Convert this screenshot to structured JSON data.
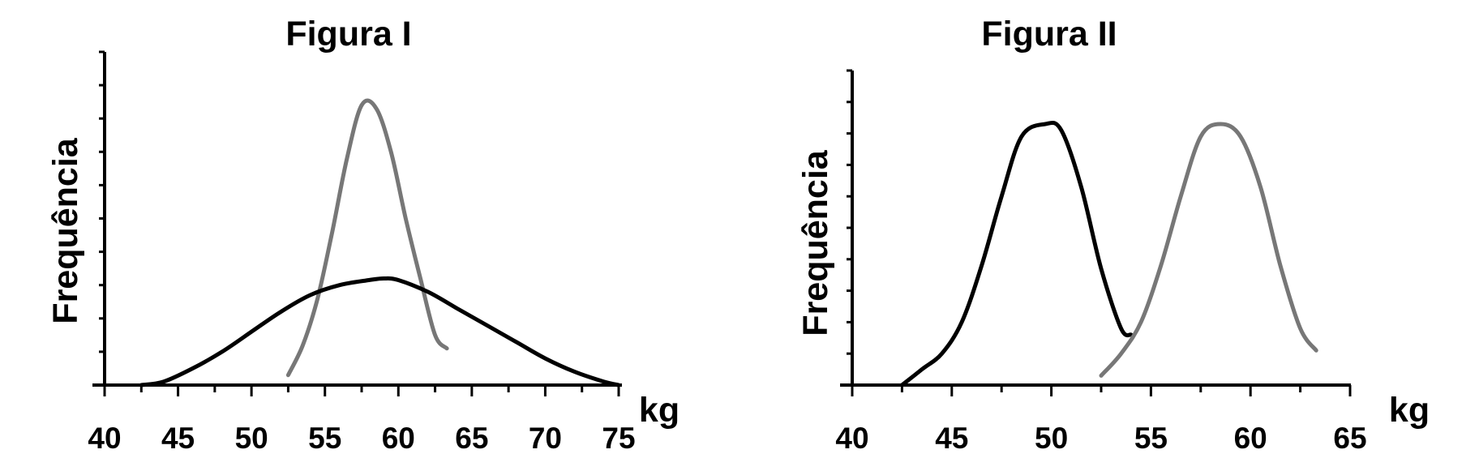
{
  "chart_data": [
    {
      "type": "line",
      "title": "Figura I",
      "xlabel": "kg",
      "ylabel": "Frequência",
      "xlim": [
        40,
        75
      ],
      "ylim": [
        0,
        10
      ],
      "x_ticks": [
        40,
        45,
        50,
        55,
        60,
        65,
        70,
        75
      ],
      "x_minor_step": 2.5,
      "y_tick_step": 1,
      "grid": false,
      "series": [
        {
          "color": "#777777",
          "points": [
            [
              52.5,
              0.3
            ],
            [
              53.5,
              1.2
            ],
            [
              54.5,
              2.6
            ],
            [
              55.5,
              4.6
            ],
            [
              56.5,
              6.8
            ],
            [
              57.5,
              8.4
            ],
            [
              58.5,
              8.3
            ],
            [
              59.5,
              7.0
            ],
            [
              60.5,
              5.0
            ],
            [
              61.5,
              3.2
            ],
            [
              62.5,
              1.5
            ],
            [
              63.3,
              1.1
            ]
          ]
        },
        {
          "color": "#000000",
          "points": [
            [
              42.5,
              0.0
            ],
            [
              44.0,
              0.1
            ],
            [
              46.0,
              0.5
            ],
            [
              48.0,
              1.0
            ],
            [
              50.0,
              1.6
            ],
            [
              52.0,
              2.2
            ],
            [
              54.0,
              2.7
            ],
            [
              56.0,
              3.0
            ],
            [
              58.0,
              3.15
            ],
            [
              59.0,
              3.2
            ],
            [
              60.0,
              3.15
            ],
            [
              62.0,
              2.8
            ],
            [
              64.0,
              2.3
            ],
            [
              66.0,
              1.8
            ],
            [
              68.0,
              1.3
            ],
            [
              70.0,
              0.8
            ],
            [
              72.0,
              0.4
            ],
            [
              74.0,
              0.1
            ],
            [
              75.0,
              0.0
            ]
          ]
        }
      ]
    },
    {
      "type": "line",
      "title": "Figura II",
      "xlabel": "kg",
      "ylabel": "Frequência",
      "xlim": [
        40,
        65
      ],
      "ylim": [
        0,
        10
      ],
      "x_ticks": [
        40,
        45,
        50,
        55,
        60,
        65
      ],
      "x_minor_step": 2.5,
      "y_tick_step": 1,
      "grid": false,
      "series": [
        {
          "color": "#000000",
          "points": [
            [
              42.5,
              0.0
            ],
            [
              43.5,
              0.5
            ],
            [
              44.5,
              1.0
            ],
            [
              45.5,
              2.0
            ],
            [
              46.5,
              3.8
            ],
            [
              47.5,
              6.0
            ],
            [
              48.5,
              7.9
            ],
            [
              49.7,
              8.3
            ],
            [
              50.5,
              8.1
            ],
            [
              51.5,
              6.3
            ],
            [
              52.5,
              3.7
            ],
            [
              53.5,
              1.8
            ],
            [
              54.0,
              1.6
            ]
          ]
        },
        {
          "color": "#777777",
          "points": [
            [
              52.5,
              0.3
            ],
            [
              53.5,
              1.0
            ],
            [
              54.5,
              2.0
            ],
            [
              55.5,
              3.8
            ],
            [
              56.5,
              6.0
            ],
            [
              57.5,
              7.9
            ],
            [
              58.5,
              8.3
            ],
            [
              59.5,
              7.9
            ],
            [
              60.5,
              6.3
            ],
            [
              61.5,
              3.8
            ],
            [
              62.5,
              1.8
            ],
            [
              63.3,
              1.1
            ]
          ]
        }
      ]
    }
  ]
}
